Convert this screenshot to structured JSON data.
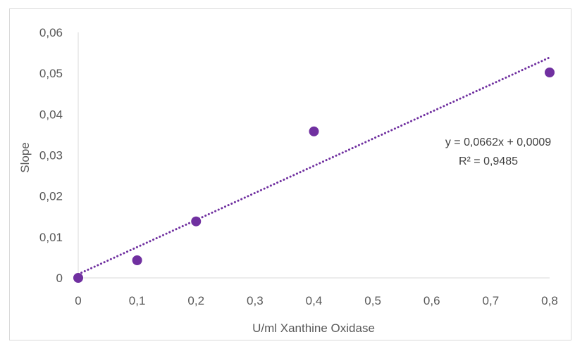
{
  "chart_data": {
    "type": "scatter",
    "xlabel": "U/ml Xanthine Oxidase",
    "ylabel": "Slope",
    "xlim": [
      0,
      0.8
    ],
    "ylim": [
      0,
      0.06
    ],
    "x_ticks": [
      "0",
      "0,1",
      "0,2",
      "0,3",
      "0,4",
      "0,5",
      "0,6",
      "0,7",
      "0,8"
    ],
    "y_ticks": [
      "0",
      "0,01",
      "0,02",
      "0,03",
      "0,04",
      "0,05",
      "0,06"
    ],
    "series": [
      {
        "x": [
          0,
          0.1,
          0.2,
          0.4,
          0.8
        ],
        "y": [
          0,
          0.0043,
          0.0138,
          0.0358,
          0.0502
        ],
        "color": "#7030a0"
      }
    ],
    "trendline": {
      "type": "linear",
      "slope": 0.0662,
      "intercept": 0.0009,
      "style": "dotted",
      "color": "#7030a0",
      "equation_label": "y = 0,0662x + 0,0009",
      "r2_label": "R² = 0,9485"
    },
    "grid": false,
    "legend": "none"
  }
}
